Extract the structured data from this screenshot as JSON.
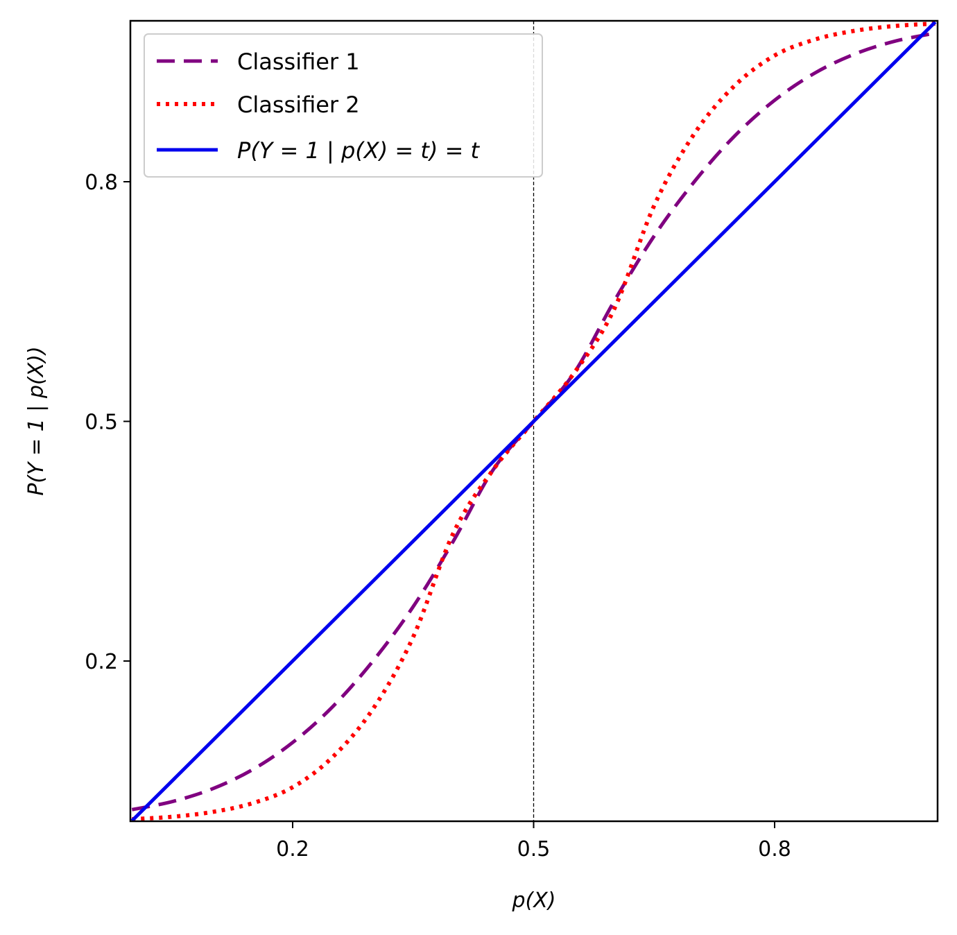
{
  "chart_data": {
    "type": "line",
    "title": "",
    "xlabel": "p(X)",
    "ylabel": "P(Y = 1 | p(X))",
    "xlim": [
      0.0,
      1.0
    ],
    "ylim": [
      0.0,
      1.0
    ],
    "x_ticks": [
      0.2,
      0.5,
      0.8
    ],
    "x_tick_labels": [
      "0.2",
      "0.5",
      "0.8"
    ],
    "y_ticks": [
      0.2,
      0.5,
      0.8
    ],
    "y_tick_labels": [
      "0.2",
      "0.5",
      "0.8"
    ],
    "grid": false,
    "legend_position": "top-left",
    "vertical_reference_line": {
      "x": 0.5,
      "style": "dashed",
      "color": "#000000"
    },
    "series": [
      {
        "name": "Classifier 1",
        "style": "dashed",
        "color": "#800080",
        "x": [
          0.0,
          0.05,
          0.1,
          0.15,
          0.2,
          0.25,
          0.3,
          0.35,
          0.4,
          0.45,
          0.5,
          0.55,
          0.6,
          0.65,
          0.7,
          0.75,
          0.8,
          0.85,
          0.9,
          0.95,
          1.0
        ],
        "y": [
          0.014,
          0.024,
          0.04,
          0.064,
          0.098,
          0.143,
          0.2,
          0.268,
          0.35,
          0.44,
          0.5,
          0.56,
          0.65,
          0.732,
          0.8,
          0.857,
          0.902,
          0.936,
          0.96,
          0.976,
          0.986
        ]
      },
      {
        "name": "Classifier 2",
        "style": "dotted",
        "color": "#ff0000",
        "x": [
          0.0,
          0.05,
          0.1,
          0.15,
          0.2,
          0.25,
          0.3,
          0.35,
          0.4,
          0.45,
          0.5,
          0.55,
          0.6,
          0.65,
          0.7,
          0.75,
          0.8,
          0.85,
          0.9,
          0.95,
          1.0
        ],
        "y": [
          0.002,
          0.005,
          0.011,
          0.022,
          0.042,
          0.08,
          0.14,
          0.23,
          0.36,
          0.44,
          0.5,
          0.56,
          0.64,
          0.77,
          0.86,
          0.92,
          0.958,
          0.978,
          0.989,
          0.995,
          0.998
        ]
      },
      {
        "name": "P(Y = 1 | p(X) = t) = t",
        "style": "solid",
        "color": "#0000ee",
        "x": [
          0.0,
          1.0
        ],
        "y": [
          0.0,
          1.0
        ]
      }
    ]
  }
}
